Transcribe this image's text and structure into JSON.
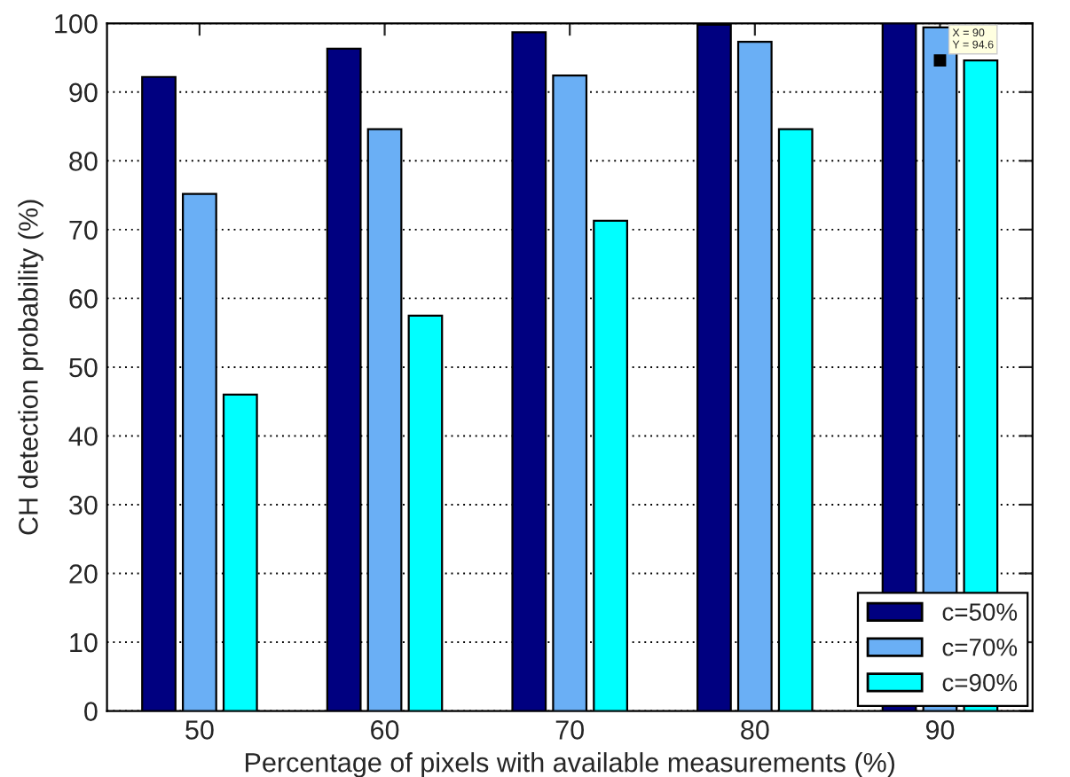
{
  "chart_data": {
    "type": "bar",
    "xlabel": "Percentage of pixels with available measurements (%)",
    "ylabel": "CH detection probability (%)",
    "categories": [
      "50",
      "60",
      "70",
      "80",
      "90"
    ],
    "series": [
      {
        "name": "c=50%",
        "color": "#000080",
        "values": [
          92.2,
          96.3,
          98.7,
          99.8,
          100
        ]
      },
      {
        "name": "c=70%",
        "color": "#6aaff5",
        "values": [
          75.2,
          84.6,
          92.4,
          97.3,
          99.4
        ]
      },
      {
        "name": "c=90%",
        "color": "#00ffff",
        "values": [
          46,
          57.5,
          71.3,
          84.6,
          94.6
        ]
      }
    ],
    "ylim": [
      0,
      100
    ],
    "yticks": [
      0,
      10,
      20,
      30,
      40,
      50,
      60,
      70,
      80,
      90,
      100
    ],
    "annotations": [
      "X = 90\nY = 94.6"
    ],
    "grid": "y",
    "legend": "bottom right"
  }
}
